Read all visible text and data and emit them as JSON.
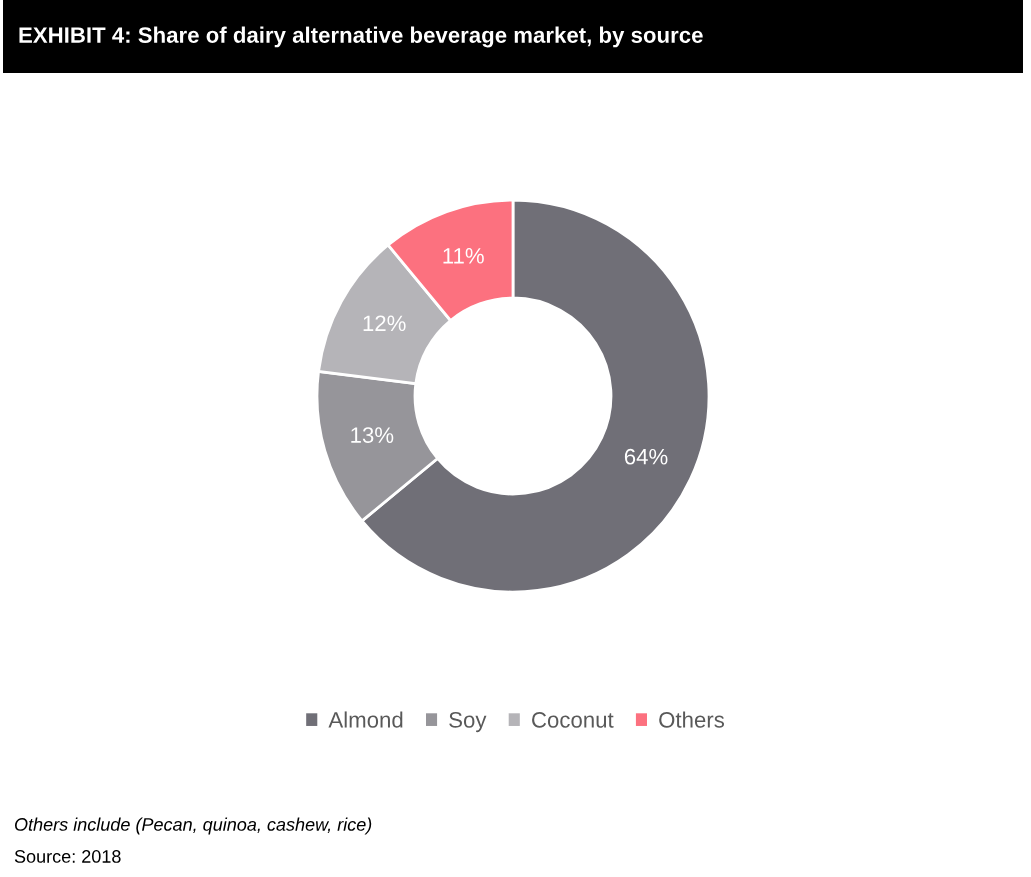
{
  "chart_data": {
    "type": "donut",
    "title": "EXHIBIT 4: Share of dairy alternative beverage market, by source",
    "categories": [
      "Almond",
      "Soy",
      "Coconut",
      "Others"
    ],
    "values": [
      64,
      13,
      12,
      11
    ],
    "colors": [
      "#706f77",
      "#96959a",
      "#b5b4b8",
      "#fc717f"
    ],
    "value_labels": [
      "64%",
      "13%",
      "12%",
      "11%"
    ],
    "legend": "bottom",
    "annotations": [
      "Others include (Pecan, quinoa, cashew, rice)",
      "Source: 2018"
    ]
  }
}
